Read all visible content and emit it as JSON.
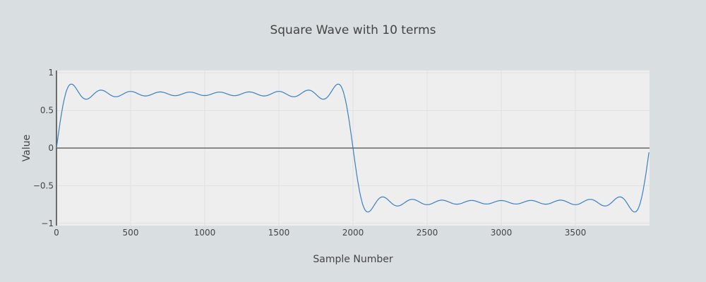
{
  "chart_data": {
    "type": "line",
    "title": "Square Wave with 10 terms",
    "xlabel": "Sample Number",
    "ylabel": "Value",
    "xlim": [
      0,
      3999
    ],
    "ylim": [
      -1.03,
      1.03
    ],
    "grid": true,
    "legend": "none",
    "x_ticks": [
      0,
      500,
      1000,
      1500,
      2000,
      2500,
      3000,
      3500
    ],
    "x_tick_labels": [
      "0",
      "500",
      "1000",
      "1500",
      "2000",
      "2500",
      "3000",
      "3500"
    ],
    "y_ticks": [
      1,
      0.5,
      0,
      -0.5,
      -1
    ],
    "y_tick_labels": [
      "1",
      "0.5",
      "0",
      "−0.5",
      "−1"
    ],
    "series": [
      {
        "name": "Square Wave",
        "color": "#3a7fc1",
        "generator": {
          "kind": "fourier_square",
          "terms": 10,
          "period": 4000,
          "samples": 4000
        },
        "sampled_points": {
          "x": [
            0,
            100,
            200,
            300,
            400,
            500,
            1000,
            1500,
            1700,
            1800,
            1900,
            2000,
            2100,
            2200,
            2500,
            3000,
            3500,
            3800,
            3900,
            3999
          ],
          "y": [
            0,
            0.92,
            0.71,
            0.83,
            0.74,
            0.81,
            0.76,
            0.81,
            0.83,
            0.71,
            0.92,
            0,
            -0.92,
            -0.71,
            -0.81,
            -0.76,
            -0.81,
            -0.71,
            -0.92,
            -0.01
          ]
        }
      }
    ]
  },
  "colors": {
    "background": "#d9dee1",
    "plot_bg": "#eeeeee",
    "line": "#3a7fc1",
    "zeroline": "#888888",
    "grid": "#e0e0e0"
  }
}
